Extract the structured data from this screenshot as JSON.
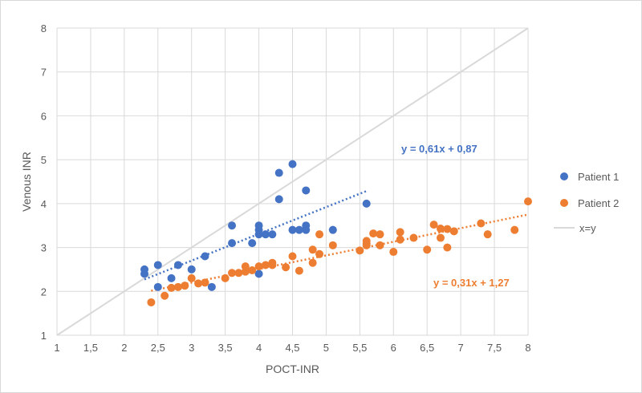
{
  "chart_data": {
    "type": "scatter",
    "xlabel": "POCT-INR",
    "ylabel": "Venous INR",
    "xlim": [
      1,
      8
    ],
    "ylim": [
      1,
      8
    ],
    "x_ticks": [
      "1",
      "1,5",
      "2",
      "2,5",
      "3",
      "3,5",
      "4",
      "4,5",
      "5",
      "5,5",
      "6",
      "6,5",
      "7",
      "7,5",
      "8"
    ],
    "y_ticks": [
      "1",
      "2",
      "3",
      "4",
      "5",
      "6",
      "7",
      "8"
    ],
    "grid": "vertical and horizontal",
    "legend_position": "right",
    "series": [
      {
        "name": "Patient 1",
        "color": "#4472C4",
        "points": [
          [
            2.3,
            2.5
          ],
          [
            2.3,
            2.4
          ],
          [
            2.5,
            2.6
          ],
          [
            2.5,
            2.1
          ],
          [
            2.7,
            2.3
          ],
          [
            2.8,
            2.6
          ],
          [
            3.0,
            2.5
          ],
          [
            3.2,
            2.8
          ],
          [
            3.3,
            2.1
          ],
          [
            3.6,
            3.5
          ],
          [
            3.6,
            3.1
          ],
          [
            3.9,
            3.1
          ],
          [
            4.0,
            3.5
          ],
          [
            4.0,
            3.4
          ],
          [
            4.0,
            3.3
          ],
          [
            4.0,
            2.4
          ],
          [
            4.1,
            3.3
          ],
          [
            4.2,
            3.3
          ],
          [
            4.3,
            4.7
          ],
          [
            4.3,
            4.1
          ],
          [
            4.5,
            4.9
          ],
          [
            4.5,
            3.4
          ],
          [
            4.6,
            3.4
          ],
          [
            4.7,
            4.3
          ],
          [
            4.7,
            3.5
          ],
          [
            4.7,
            3.4
          ],
          [
            5.1,
            3.4
          ],
          [
            5.6,
            4.0
          ]
        ],
        "trendline": {
          "slope": 0.61,
          "intercept": 0.87,
          "x_range": [
            2.3,
            5.6
          ],
          "label": "y = 0,61x + 0,87"
        }
      },
      {
        "name": "Patient 2",
        "color": "#ED7D31",
        "points": [
          [
            2.4,
            1.75
          ],
          [
            2.6,
            1.9
          ],
          [
            2.7,
            2.08
          ],
          [
            2.8,
            2.1
          ],
          [
            2.9,
            2.13
          ],
          [
            3.0,
            2.3
          ],
          [
            3.1,
            2.18
          ],
          [
            3.2,
            2.2
          ],
          [
            3.5,
            2.3
          ],
          [
            3.6,
            2.42
          ],
          [
            3.7,
            2.42
          ],
          [
            3.8,
            2.45
          ],
          [
            3.8,
            2.57
          ],
          [
            3.9,
            2.48
          ],
          [
            4.0,
            2.57
          ],
          [
            4.1,
            2.6
          ],
          [
            4.2,
            2.6
          ],
          [
            4.2,
            2.65
          ],
          [
            4.4,
            2.55
          ],
          [
            4.5,
            2.8
          ],
          [
            4.6,
            2.47
          ],
          [
            4.8,
            2.95
          ],
          [
            4.8,
            2.65
          ],
          [
            4.9,
            3.3
          ],
          [
            4.9,
            2.85
          ],
          [
            5.1,
            3.05
          ],
          [
            5.5,
            2.93
          ],
          [
            5.6,
            3.1
          ],
          [
            5.6,
            3.15
          ],
          [
            5.6,
            3.05
          ],
          [
            5.7,
            3.32
          ],
          [
            5.8,
            3.05
          ],
          [
            5.8,
            3.3
          ],
          [
            6.0,
            2.9
          ],
          [
            6.1,
            3.18
          ],
          [
            6.1,
            3.35
          ],
          [
            6.3,
            3.22
          ],
          [
            6.5,
            2.95
          ],
          [
            6.6,
            3.52
          ],
          [
            6.7,
            3.22
          ],
          [
            6.7,
            3.43
          ],
          [
            6.8,
            3.42
          ],
          [
            6.8,
            3.0
          ],
          [
            6.9,
            3.37
          ],
          [
            7.3,
            3.55
          ],
          [
            7.4,
            3.3
          ],
          [
            7.8,
            3.4
          ],
          [
            8.0,
            4.05
          ]
        ],
        "trendline": {
          "slope": 0.31,
          "intercept": 1.27,
          "x_range": [
            2.4,
            8.0
          ],
          "label": "y = 0,31x + 1,27"
        }
      },
      {
        "name": "x=y",
        "color": "#d9d9d9",
        "line": [
          [
            1,
            1
          ],
          [
            8,
            8
          ]
        ]
      }
    ]
  }
}
